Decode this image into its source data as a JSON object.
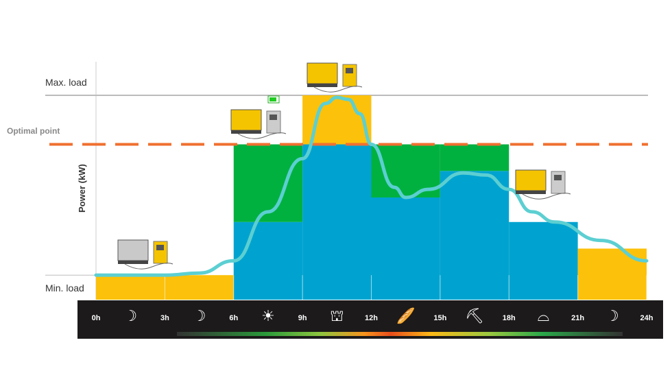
{
  "labels": {
    "max_load": "Max. load",
    "min_load": "Min. load",
    "optimal_point": "Optimal point",
    "ylabel": "Power (kW)"
  },
  "colors": {
    "blue": "#00a3cf",
    "green": "#00b140",
    "yellow": "#fcc10b",
    "curve": "#5ccfd2",
    "optimal": "#f07030",
    "timebar": "#1c1a1a"
  },
  "chart_data": {
    "type": "bar",
    "stacked": true,
    "x_ticks": [
      "0h",
      "3h",
      "6h",
      "9h",
      "12h",
      "15h",
      "18h",
      "21h",
      "24h"
    ],
    "period_icons": [
      "moon-icon",
      "moon-icon",
      "sun-icon",
      "crane-icon",
      "sandwich-icon",
      "excavator-icon",
      "sunset-icon",
      "moon-icon"
    ],
    "reference_lines": {
      "min_load": 12,
      "optimal_point": 76,
      "max_load": 100
    },
    "ylim": [
      0,
      100
    ],
    "segments": [
      {
        "from": 0,
        "to": 6,
        "blue": 0,
        "green": 0,
        "yellow": 12
      },
      {
        "from": 6,
        "to": 9,
        "blue": 38,
        "green": 38,
        "yellow": 0
      },
      {
        "from": 9,
        "to": 12,
        "blue": 76,
        "green": 0,
        "yellow": 24
      },
      {
        "from": 12,
        "to": 15,
        "blue": 50,
        "green": 26,
        "yellow": 0
      },
      {
        "from": 15,
        "to": 18,
        "blue": 63,
        "green": 13,
        "yellow": 0
      },
      {
        "from": 18,
        "to": 21,
        "blue": 38,
        "green": 0,
        "yellow": 0
      },
      {
        "from": 21,
        "to": 24,
        "blue": 0,
        "green": 0,
        "yellow": 25
      }
    ],
    "load_curve": {
      "x": [
        0,
        3,
        4.5,
        6,
        7.5,
        9,
        10,
        10.5,
        11,
        11.5,
        12,
        13,
        13.5,
        14.5,
        16,
        17,
        18,
        19,
        20,
        22,
        24
      ],
      "y": [
        12,
        12,
        13,
        19,
        43,
        69,
        96,
        99,
        98,
        91,
        76,
        55,
        50,
        54,
        62,
        61,
        54,
        43,
        38,
        29,
        19
      ]
    },
    "equipment_icons": [
      "generator-and-battery-icon",
      "generator-and-battery-charging-icon",
      "generator-and-battery-icon",
      "generator-and-battery-icon"
    ]
  }
}
